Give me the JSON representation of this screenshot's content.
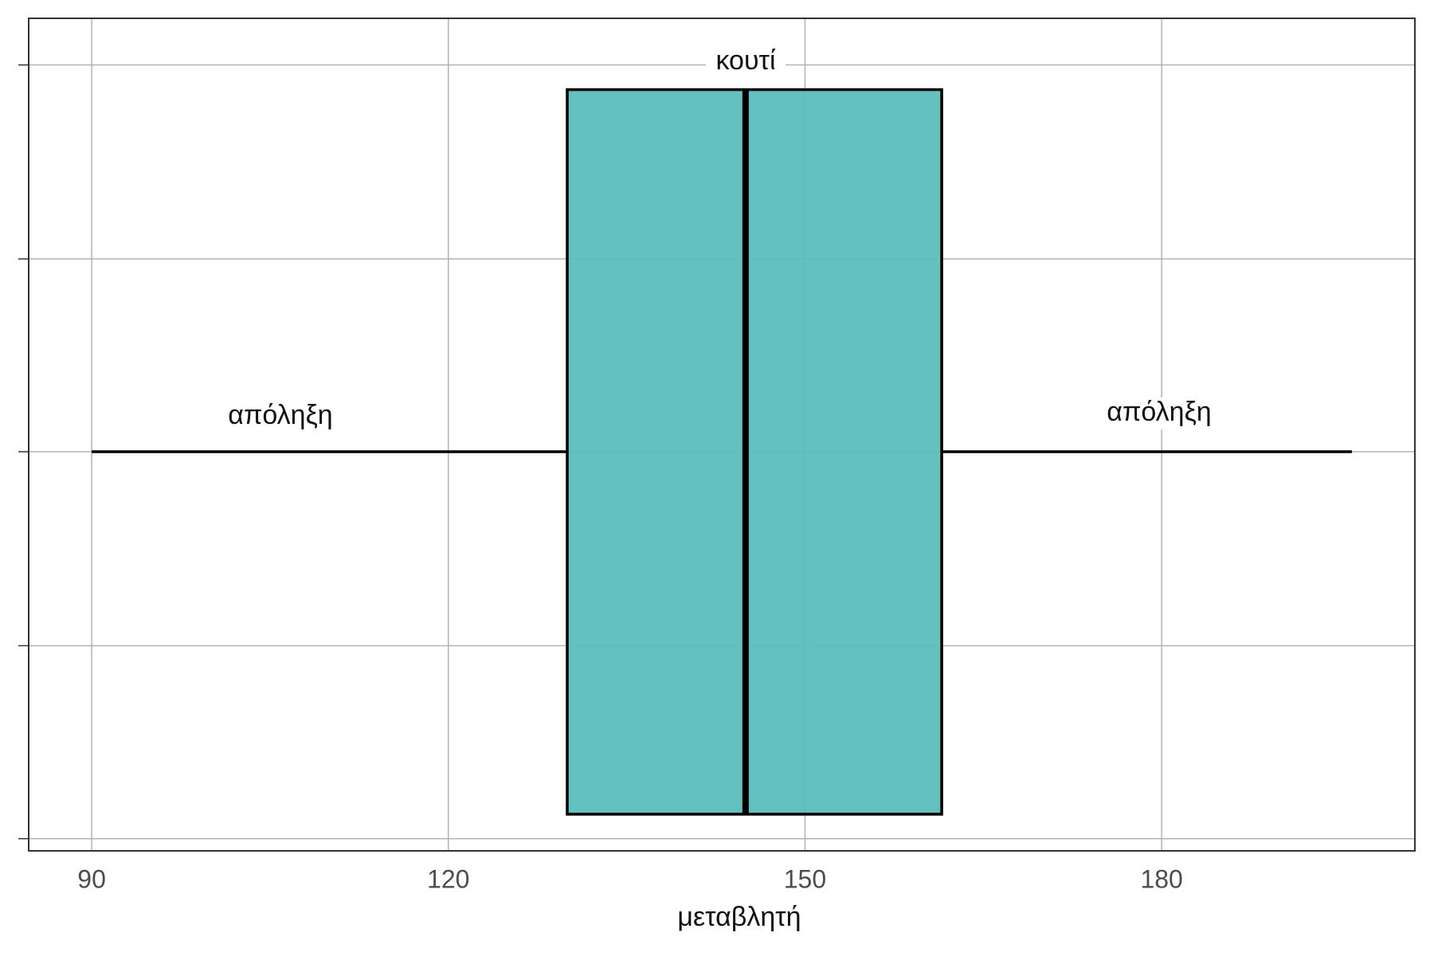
{
  "chart_data": {
    "type": "box",
    "x_label": "μεταβλητή",
    "annotations": [
      "κουτί",
      "απόληξη",
      "απόληξη"
    ],
    "whisker_low": 90,
    "q1": 130,
    "median": 145,
    "q3": 161.5,
    "whisker_high": 196,
    "color": "#5bbfbd",
    "xlim": [
      84.7,
      201.3
    ],
    "xticks": [
      90,
      120,
      150,
      180
    ],
    "grid": true
  }
}
